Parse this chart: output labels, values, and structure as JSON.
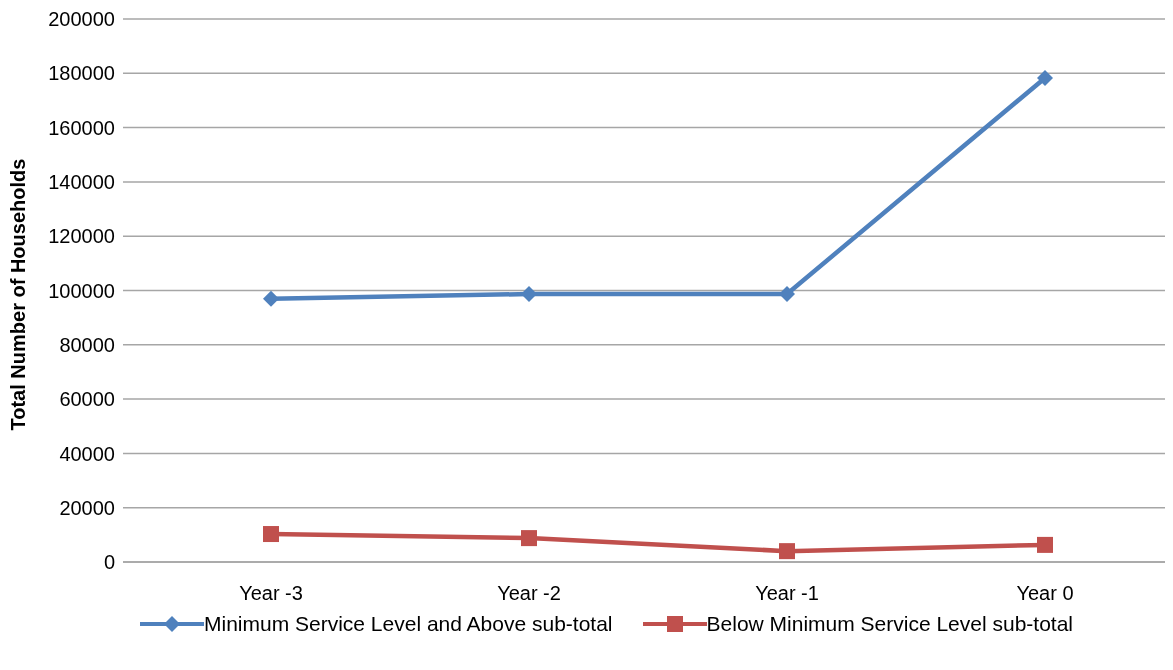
{
  "chart_data": {
    "type": "line",
    "ylabel": "Total Number of Households",
    "categories": [
      "Year -3",
      "Year -2",
      "Year -1",
      "Year 0"
    ],
    "series": [
      {
        "name": "Minimum Service Level and Above sub-total",
        "color": "#4f81bd",
        "marker": "diamond",
        "values": [
          97000,
          98700,
          98700,
          178300
        ]
      },
      {
        "name": "Below Minimum Service Level sub-total",
        "color": "#c0504d",
        "marker": "square",
        "values": [
          10300,
          8800,
          4000,
          6300
        ]
      }
    ],
    "ylim": [
      0,
      200000
    ],
    "yticks": [
      0,
      20000,
      40000,
      60000,
      80000,
      100000,
      120000,
      140000,
      160000,
      180000,
      200000
    ],
    "grid": "y",
    "legend": "bottom",
    "line_style": "solid"
  }
}
